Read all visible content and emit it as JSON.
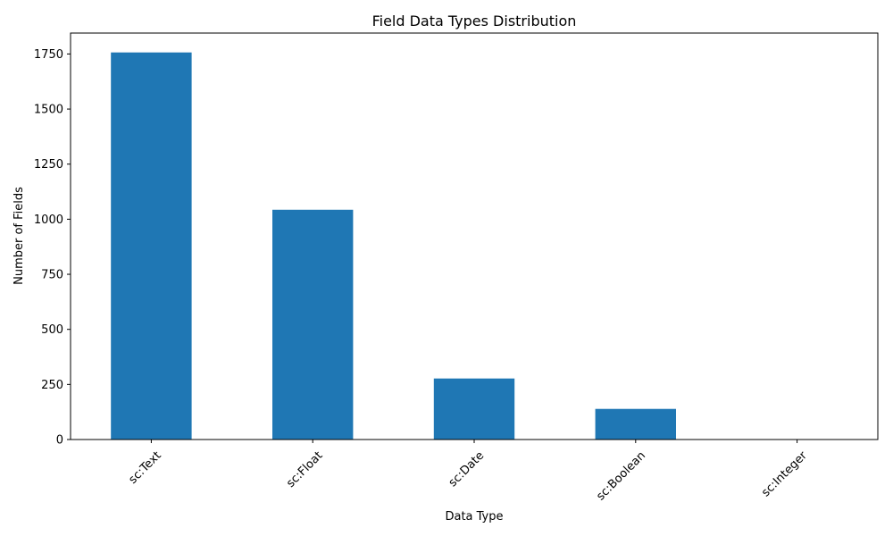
{
  "chart_data": {
    "type": "bar",
    "title": "Field Data Types Distribution",
    "xlabel": "Data Type",
    "ylabel": "Number of Fields",
    "categories": [
      "sc:Text",
      "sc:Float",
      "sc:Date",
      "sc:Boolean",
      "sc:Integer"
    ],
    "values": [
      1757,
      1043,
      277,
      139,
      1
    ],
    "ylim": [
      0,
      1845
    ],
    "yticks": [
      0,
      250,
      500,
      750,
      1000,
      1250,
      1500,
      1750
    ],
    "grid": false,
    "x_tick_rotation_deg": 45,
    "colors": {
      "bar": "#1f77b4",
      "axis": "#000000",
      "background": "#ffffff"
    }
  }
}
